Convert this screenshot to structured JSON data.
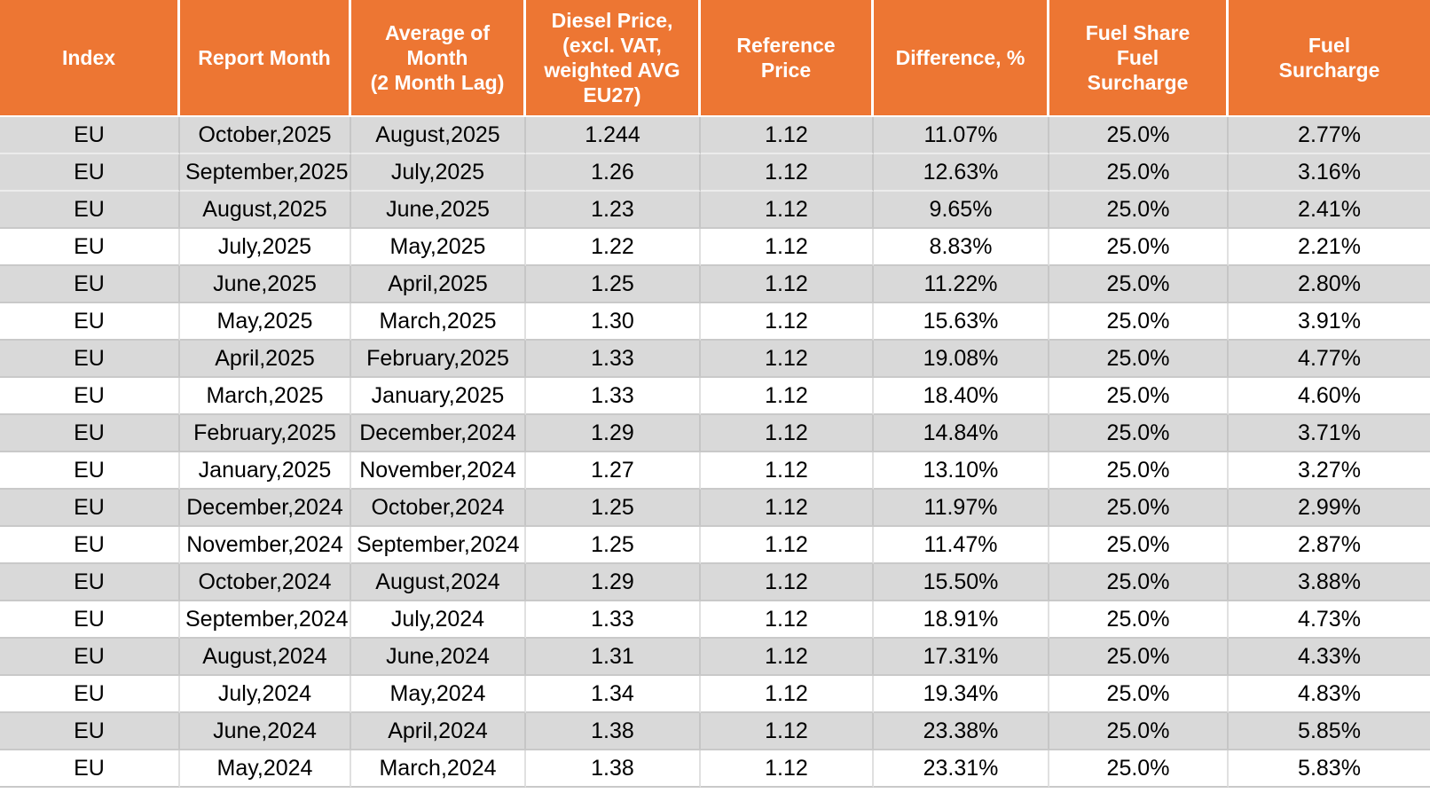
{
  "chart_data": {
    "type": "table",
    "columns": [
      "Index",
      "Report Month",
      "Average of\nMonth\n(2 Month Lag)",
      "Diesel Price,\n(excl. VAT,\nweighted AVG\nEU27)",
      "Reference\nPrice",
      "Difference, %",
      "Fuel Share\nFuel\nSurcharge",
      "Fuel\nSurcharge"
    ],
    "rows": [
      [
        "EU",
        "October,2025",
        "August,2025",
        "1.244",
        "1.12",
        "11.07%",
        "25.0%",
        "2.77%"
      ],
      [
        "EU",
        "September,2025",
        "July,2025",
        "1.26",
        "1.12",
        "12.63%",
        "25.0%",
        "3.16%"
      ],
      [
        "EU",
        "August,2025",
        "June,2025",
        "1.23",
        "1.12",
        "9.65%",
        "25.0%",
        "2.41%"
      ],
      [
        "EU",
        "July,2025",
        "May,2025",
        "1.22",
        "1.12",
        "8.83%",
        "25.0%",
        "2.21%"
      ],
      [
        "EU",
        "June,2025",
        "April,2025",
        "1.25",
        "1.12",
        "11.22%",
        "25.0%",
        "2.80%"
      ],
      [
        "EU",
        "May,2025",
        "March,2025",
        "1.30",
        "1.12",
        "15.63%",
        "25.0%",
        "3.91%"
      ],
      [
        "EU",
        "April,2025",
        "February,2025",
        "1.33",
        "1.12",
        "19.08%",
        "25.0%",
        "4.77%"
      ],
      [
        "EU",
        "March,2025",
        "January,2025",
        "1.33",
        "1.12",
        "18.40%",
        "25.0%",
        "4.60%"
      ],
      [
        "EU",
        "February,2025",
        "December,2024",
        "1.29",
        "1.12",
        "14.84%",
        "25.0%",
        "3.71%"
      ],
      [
        "EU",
        "January,2025",
        "November,2024",
        "1.27",
        "1.12",
        "13.10%",
        "25.0%",
        "3.27%"
      ],
      [
        "EU",
        "December,2024",
        "October,2024",
        "1.25",
        "1.12",
        "11.97%",
        "25.0%",
        "2.99%"
      ],
      [
        "EU",
        "November,2024",
        "September,2024",
        "1.25",
        "1.12",
        "11.47%",
        "25.0%",
        "2.87%"
      ],
      [
        "EU",
        "October,2024",
        "August,2024",
        "1.29",
        "1.12",
        "15.50%",
        "25.0%",
        "3.88%"
      ],
      [
        "EU",
        "September,2024",
        "July,2024",
        "1.33",
        "1.12",
        "18.91%",
        "25.0%",
        "4.73%"
      ],
      [
        "EU",
        "August,2024",
        "June,2024",
        "1.31",
        "1.12",
        "17.31%",
        "25.0%",
        "4.33%"
      ],
      [
        "EU",
        "July,2024",
        "May,2024",
        "1.34",
        "1.12",
        "19.34%",
        "25.0%",
        "4.83%"
      ],
      [
        "EU",
        "June,2024",
        "April,2024",
        "1.38",
        "1.12",
        "23.38%",
        "25.0%",
        "5.85%"
      ],
      [
        "EU",
        "May,2024",
        "March,2024",
        "1.38",
        "1.12",
        "23.31%",
        "25.0%",
        "5.83%"
      ]
    ],
    "legend": null,
    "grid": true
  },
  "style": {
    "header_bg": "#ED7633",
    "header_text": "#FFFFFF",
    "shaded_row_bg": "#D9D9D9",
    "unshaded_row_bg": "#FFFFFF",
    "body_text": "#000000"
  },
  "layout_hints": {
    "shaded_rows": [
      0,
      1,
      2,
      4,
      6,
      8,
      10,
      12,
      14,
      16
    ],
    "light_separator_after_rows": [
      0,
      1
    ]
  }
}
